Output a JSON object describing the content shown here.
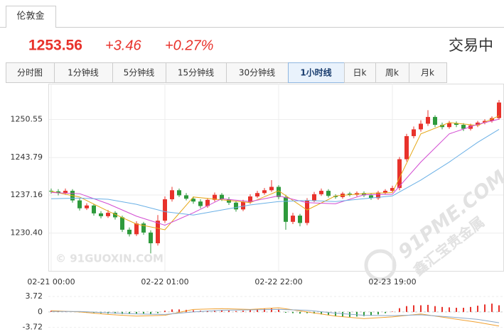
{
  "header": {
    "instrument": "伦敦金",
    "price": "1253.56",
    "change": "+3.46",
    "change_percent": "+0.27%",
    "status": "交易中"
  },
  "tabs": [
    "分时图",
    "1分钟线",
    "5分钟线",
    "15分钟线",
    "30分钟线",
    "1小时线",
    "日k",
    "周k",
    "月k"
  ],
  "active_tab": 5,
  "chart_data": [
    {
      "type": "candlestick",
      "categories": [
        "02-21 00:00",
        null,
        null,
        null,
        null,
        null,
        null,
        null,
        null,
        null,
        null,
        null,
        null,
        null,
        null,
        null,
        "02-22 01:00",
        null,
        null,
        null,
        null,
        null,
        null,
        null,
        null,
        null,
        null,
        null,
        null,
        null,
        null,
        null,
        "02-22 22:00",
        null,
        null,
        null,
        null,
        null,
        null,
        null,
        null,
        null,
        null,
        null,
        null,
        null,
        null,
        null,
        "02-23 19:00",
        null,
        null,
        null,
        null,
        null,
        null,
        null,
        null,
        null,
        null,
        null,
        null,
        null,
        null,
        null
      ],
      "open": [
        1237.9,
        1237.8,
        1237.5,
        1237.9,
        1236.2,
        1234.8,
        1235.3,
        1233.9,
        1233.4,
        1234.0,
        1233.2,
        1231.0,
        1230.2,
        1232.1,
        1230.5,
        1228.6,
        1232.6,
        1236.4,
        1238.0,
        1237.1,
        1236.5,
        1236.0,
        1235.2,
        1236.3,
        1237.2,
        1236.4,
        1235.8,
        1234.6,
        1235.9,
        1236.9,
        1237.5,
        1238.0,
        1238.6,
        1236.8,
        1232.4,
        1233.5,
        1232.2,
        1236.2,
        1237.3,
        1237.9,
        1237.0,
        1236.8,
        1237.4,
        1237.2,
        1237.5,
        1237.1,
        1236.6,
        1237.6,
        1237.9,
        1238.4,
        1243.5,
        1247.6,
        1248.8,
        1249.8,
        1251.0,
        1249.6,
        1249.2,
        1249.9,
        1249.6,
        1248.9,
        1249.5,
        1250.0,
        1250.3,
        1250.8
      ],
      "high": [
        1238.3,
        1238.2,
        1238.3,
        1238.2,
        1236.6,
        1235.7,
        1235.6,
        1234.3,
        1234.5,
        1234.3,
        1233.5,
        1231.4,
        1232.5,
        1232.4,
        1230.9,
        1233.6,
        1236.9,
        1238.6,
        1238.3,
        1237.5,
        1236.9,
        1236.4,
        1236.6,
        1237.6,
        1237.5,
        1236.8,
        1236.1,
        1236.3,
        1237.3,
        1237.9,
        1238.4,
        1239.8,
        1238.9,
        1237.2,
        1234.0,
        1233.8,
        1236.6,
        1237.7,
        1238.3,
        1238.2,
        1237.3,
        1237.7,
        1237.7,
        1237.8,
        1237.8,
        1237.4,
        1237.9,
        1238.2,
        1238.8,
        1243.9,
        1248.0,
        1249.3,
        1250.4,
        1252.2,
        1251.3,
        1250.0,
        1250.3,
        1250.2,
        1249.9,
        1249.8,
        1250.3,
        1250.6,
        1251.1,
        1254.0
      ],
      "low": [
        1237.4,
        1237.1,
        1237.2,
        1235.8,
        1234.4,
        1234.5,
        1233.5,
        1233.0,
        1233.1,
        1232.8,
        1230.6,
        1229.8,
        1229.9,
        1230.1,
        1226.8,
        1228.2,
        1232.2,
        1236.0,
        1236.8,
        1236.2,
        1235.6,
        1234.8,
        1234.9,
        1236.0,
        1236.1,
        1235.4,
        1234.2,
        1234.3,
        1235.6,
        1236.6,
        1237.2,
        1237.7,
        1236.4,
        1231.0,
        1232.0,
        1231.6,
        1231.8,
        1235.9,
        1237.0,
        1236.7,
        1236.5,
        1236.5,
        1236.9,
        1236.9,
        1236.8,
        1236.3,
        1236.3,
        1237.3,
        1237.6,
        1238.0,
        1243.1,
        1247.2,
        1248.4,
        1249.4,
        1249.2,
        1248.8,
        1248.9,
        1249.2,
        1248.5,
        1248.6,
        1249.2,
        1249.7,
        1250.0,
        1250.5
      ],
      "close": [
        1237.8,
        1237.5,
        1237.9,
        1236.2,
        1234.8,
        1235.3,
        1233.9,
        1233.4,
        1234.0,
        1233.2,
        1231.0,
        1230.2,
        1232.1,
        1230.5,
        1228.6,
        1232.6,
        1236.4,
        1238.0,
        1237.1,
        1236.5,
        1236.0,
        1235.2,
        1236.3,
        1237.2,
        1236.4,
        1235.8,
        1234.6,
        1235.9,
        1236.9,
        1237.5,
        1238.0,
        1238.6,
        1236.8,
        1232.4,
        1233.5,
        1232.2,
        1236.2,
        1237.3,
        1237.9,
        1237.0,
        1236.8,
        1237.4,
        1237.2,
        1237.5,
        1237.1,
        1236.6,
        1237.6,
        1237.9,
        1238.4,
        1243.5,
        1247.6,
        1248.8,
        1249.8,
        1251.0,
        1249.6,
        1249.2,
        1249.9,
        1249.6,
        1248.9,
        1249.5,
        1250.0,
        1250.3,
        1250.8,
        1253.56
      ],
      "up_color": "#e8322b",
      "down_color": "#2e9a3c",
      "lines": [
        {
          "color": "#e6a817",
          "x": [
            0,
            4,
            8,
            12,
            16,
            20,
            24,
            28,
            32,
            36,
            40,
            44,
            48,
            52,
            56,
            60,
            63
          ],
          "values": [
            1237.8,
            1236.8,
            1234.3,
            1232.0,
            1231.0,
            1236.8,
            1236.3,
            1235.8,
            1237.9,
            1234.5,
            1237.0,
            1237.4,
            1237.6,
            1248.0,
            1250.0,
            1249.5,
            1251.2
          ]
        },
        {
          "color": "#d24bd2",
          "x": [
            0,
            4,
            8,
            12,
            16,
            20,
            24,
            28,
            32,
            36,
            40,
            44,
            48,
            52,
            56,
            60,
            63
          ],
          "values": [
            1237.6,
            1237.4,
            1235.6,
            1233.4,
            1231.8,
            1234.0,
            1236.5,
            1236.0,
            1237.0,
            1235.8,
            1235.6,
            1237.2,
            1237.3,
            1243.0,
            1248.0,
            1249.7,
            1250.6
          ]
        },
        {
          "color": "#6ab0e6",
          "x": [
            0,
            4,
            8,
            12,
            16,
            20,
            24,
            28,
            32,
            36,
            40,
            44,
            48,
            52,
            56,
            60,
            63
          ],
          "values": [
            1236.5,
            1236.6,
            1236.4,
            1235.5,
            1234.2,
            1233.6,
            1234.5,
            1235.4,
            1236.0,
            1236.2,
            1236.0,
            1236.5,
            1237.0,
            1239.8,
            1243.0,
            1246.5,
            1248.8
          ]
        }
      ],
      "ylim": [
        1223.7,
        1256.9
      ],
      "yticks": [
        {
          "value": 1230.4,
          "label": "1230.40"
        },
        1237.16,
        1243.79,
        1250.55
      ],
      "grid": true,
      "watermarks": [
        "© 91GUOXIN.COM",
        "91PME.COM",
        "鑫汇宝贵金属"
      ]
    },
    {
      "type": "macd",
      "values": [
        0.3,
        0.3,
        0.2,
        0.1,
        -0.1,
        -0.2,
        -0.3,
        -0.3,
        -0.4,
        -0.4,
        -0.5,
        -0.5,
        -0.4,
        -0.4,
        -0.6,
        -0.3,
        0.3,
        0.6,
        0.6,
        0.5,
        0.4,
        0.3,
        0.3,
        0.4,
        0.4,
        0.3,
        0.2,
        0.3,
        0.5,
        0.7,
        0.8,
        0.9,
        0.7,
        -0.2,
        -0.3,
        -0.4,
        -0.3,
        -0.4,
        -0.6,
        -0.8,
        -1.0,
        -1.1,
        -1.2,
        -1.1,
        -1.0,
        -0.8,
        -0.6,
        -0.3,
        0.1,
        0.9,
        1.4,
        1.6,
        1.6,
        1.7,
        1.4,
        1.2,
        1.1,
        1.0,
        1.0,
        1.2,
        1.5,
        1.8,
        2.0,
        1.6
      ],
      "up_color": "#e8322b",
      "down_color": "#2e9a3c",
      "lines": [
        {
          "color": "#f0a030",
          "x": [
            0,
            4,
            8,
            12,
            16,
            20,
            24,
            28,
            32,
            36,
            40,
            44,
            48,
            52,
            56,
            60,
            63
          ],
          "values": [
            0.3,
            0.0,
            -0.6,
            -1.0,
            -0.8,
            0.6,
            0.8,
            0.6,
            1.0,
            0.0,
            -1.0,
            -1.6,
            -1.2,
            -0.5,
            -1.5,
            -2.5,
            -3.4
          ]
        },
        {
          "color": "#8aa8c8",
          "x": [
            0,
            4,
            8,
            12,
            16,
            20,
            24,
            28,
            32,
            36,
            40,
            44,
            48,
            52,
            56,
            60,
            63
          ],
          "values": [
            0.1,
            0.1,
            -0.2,
            -0.5,
            -0.6,
            0.0,
            0.4,
            0.5,
            0.6,
            0.4,
            -0.3,
            -0.8,
            -0.9,
            -0.7,
            -1.2,
            -1.8,
            -2.6
          ]
        }
      ],
      "ylim": [
        -4.8,
        5.1
      ],
      "yticks": [
        -3.72,
        0,
        3.72
      ]
    }
  ]
}
